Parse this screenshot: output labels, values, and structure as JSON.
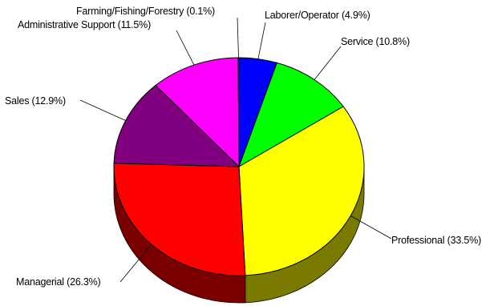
{
  "chart_data": {
    "type": "pie",
    "style": "3d",
    "title": "",
    "slices": [
      {
        "label": "Laborer/Operator (4.9%)",
        "value": 4.9,
        "color": "#0000ff",
        "side_color": "#00007a"
      },
      {
        "label": "Service (10.8%)",
        "value": 10.8,
        "color": "#00ff00",
        "side_color": "#007a00"
      },
      {
        "label": "Professional (33.5%)",
        "value": 33.5,
        "color": "#ffff00",
        "side_color": "#7a7a00"
      },
      {
        "label": "Managerial (26.3%)",
        "value": 26.3,
        "color": "#ff0000",
        "side_color": "#7a0000"
      },
      {
        "label": "Sales (12.9%)",
        "value": 12.9,
        "color": "#800080",
        "side_color": "#3d003d"
      },
      {
        "label": "Administrative Support (11.5%)",
        "value": 11.5,
        "color": "#ff00ff",
        "side_color": "#7a007a"
      },
      {
        "label": "Farming/Fishing/Forestry (0.1%)",
        "value": 0.1,
        "color": "#00ffff",
        "side_color": "#007a7a"
      }
    ]
  }
}
